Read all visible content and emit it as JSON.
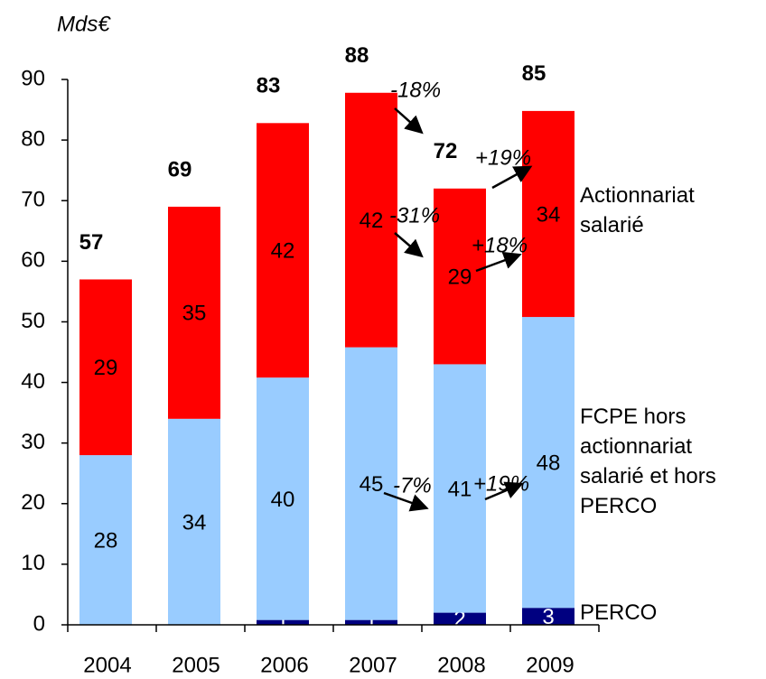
{
  "chart_data": {
    "type": "stacked_bar",
    "y_label": "Mds€",
    "categories": [
      "2004",
      "2005",
      "2006",
      "2007",
      "2008",
      "2009"
    ],
    "series": [
      {
        "name": "PERCO",
        "color": "#000080",
        "label_color": "#ffffff",
        "values": [
          0,
          0,
          0.8,
          0.8,
          2,
          2.8
        ],
        "value_labels": [
          "0",
          "0",
          "1",
          "1",
          "2",
          "3"
        ]
      },
      {
        "name": "FCPE hors actionnariat salarié et hors PERCO",
        "color": "#99ccff",
        "label_color": "#000000",
        "values": [
          28,
          34,
          40,
          45,
          41,
          48
        ]
      },
      {
        "name": "Actionnariat salarié",
        "color": "#ff0000",
        "label_color": "#000000",
        "values": [
          29,
          35,
          42,
          42,
          29,
          34
        ]
      }
    ],
    "totals": [
      57,
      69,
      83,
      88,
      72,
      85
    ],
    "annotations": [
      "-18%",
      "+19%",
      "-31%",
      "+18%",
      "-7%",
      "+19%"
    ],
    "ylim": [
      0,
      90
    ],
    "yticks": [
      0,
      10,
      20,
      30,
      40,
      50,
      60,
      70,
      80,
      90
    ]
  }
}
